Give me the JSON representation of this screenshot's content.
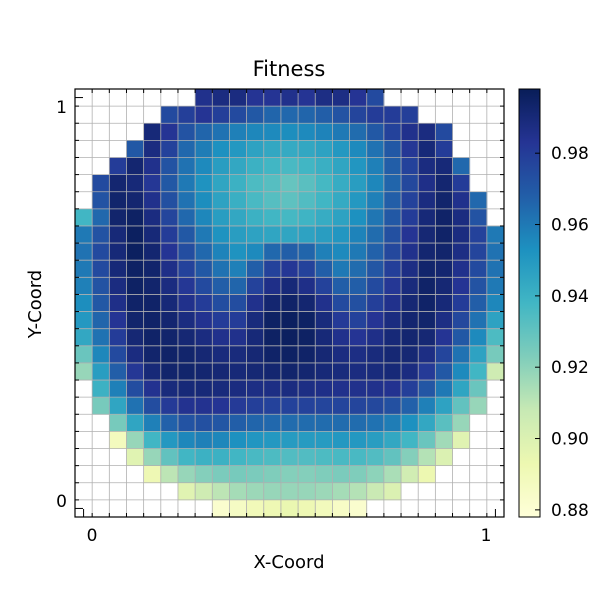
{
  "chart_data": {
    "type": "heatmap",
    "title": "Fitness",
    "xlabel": "X-Coord",
    "ylabel": "Y-Coord",
    "x_ticks": [
      "0",
      "1"
    ],
    "y_ticks": [
      "0",
      "1"
    ],
    "grid": true,
    "colormap": "YlGnBu",
    "colorbar": {
      "ticks": [
        0.88,
        0.9,
        0.92,
        0.94,
        0.96,
        0.98
      ],
      "tick_labels": [
        "0.88",
        "0.90",
        "0.92",
        "0.94",
        "0.96",
        "0.98"
      ],
      "range": [
        0.878,
        0.998
      ],
      "position": "right"
    },
    "grid_size": 25,
    "rows_top_to_bottom": [
      [
        null,
        null,
        null,
        null,
        null,
        null,
        null,
        0.985,
        0.988,
        0.988,
        0.983,
        0.983,
        0.985,
        0.983,
        0.987,
        0.987,
        0.983,
        0.975,
        null,
        null,
        null,
        null,
        null,
        null,
        null
      ],
      [
        null,
        null,
        null,
        null,
        null,
        0.975,
        0.979,
        0.983,
        0.979,
        0.975,
        0.97,
        0.966,
        0.965,
        0.966,
        0.968,
        0.972,
        0.977,
        0.98,
        0.98,
        0.979,
        null,
        null,
        null,
        null,
        null
      ],
      [
        null,
        null,
        null,
        null,
        0.99,
        0.983,
        0.972,
        0.966,
        0.962,
        0.958,
        0.956,
        0.955,
        0.954,
        0.955,
        0.957,
        0.96,
        0.964,
        0.97,
        0.978,
        0.985,
        0.988,
        0.975,
        null,
        null,
        null
      ],
      [
        null,
        null,
        null,
        0.97,
        0.988,
        0.978,
        0.965,
        0.959,
        0.953,
        0.95,
        0.946,
        0.944,
        0.943,
        0.944,
        0.946,
        0.95,
        0.955,
        0.962,
        0.97,
        0.982,
        0.99,
        0.98,
        null,
        null,
        null
      ],
      [
        null,
        null,
        0.98,
        0.992,
        0.985,
        0.972,
        0.962,
        0.955,
        0.948,
        0.944,
        0.94,
        0.938,
        0.936,
        0.938,
        0.941,
        0.945,
        0.951,
        0.958,
        0.968,
        0.978,
        0.988,
        0.99,
        0.965,
        null,
        null
      ],
      [
        null,
        0.975,
        0.992,
        0.99,
        0.982,
        0.97,
        0.96,
        0.952,
        0.945,
        0.94,
        0.935,
        0.933,
        0.929,
        0.932,
        0.937,
        0.942,
        0.948,
        0.956,
        0.966,
        0.976,
        0.986,
        0.992,
        0.98,
        null,
        null
      ],
      [
        null,
        0.972,
        0.993,
        0.992,
        0.985,
        0.973,
        0.962,
        0.954,
        0.946,
        0.941,
        0.936,
        0.933,
        0.931,
        0.934,
        0.938,
        0.943,
        0.95,
        0.958,
        0.968,
        0.978,
        0.988,
        0.993,
        0.985,
        0.965,
        null
      ],
      [
        0.938,
        0.965,
        0.993,
        0.995,
        0.988,
        0.977,
        0.965,
        0.956,
        0.948,
        0.944,
        0.94,
        0.938,
        0.937,
        0.939,
        0.942,
        0.946,
        0.953,
        0.961,
        0.97,
        0.98,
        0.99,
        0.994,
        0.988,
        0.972,
        null
      ],
      [
        0.96,
        0.972,
        0.99,
        0.996,
        0.99,
        0.98,
        0.97,
        0.96,
        0.952,
        0.948,
        0.946,
        0.945,
        0.945,
        0.946,
        0.948,
        0.951,
        0.957,
        0.964,
        0.973,
        0.983,
        0.991,
        0.994,
        0.988,
        0.978,
        0.96
      ],
      [
        0.962,
        0.975,
        0.99,
        0.996,
        0.992,
        0.983,
        0.974,
        0.965,
        0.957,
        0.952,
        0.955,
        0.965,
        0.968,
        0.966,
        0.958,
        0.955,
        0.96,
        0.967,
        0.976,
        0.985,
        0.992,
        0.993,
        0.987,
        0.977,
        0.962
      ],
      [
        0.96,
        0.975,
        0.99,
        0.995,
        0.993,
        0.986,
        0.978,
        0.97,
        0.962,
        0.958,
        0.968,
        0.978,
        0.982,
        0.978,
        0.968,
        0.96,
        0.964,
        0.971,
        0.979,
        0.987,
        0.993,
        0.992,
        0.985,
        0.975,
        0.962
      ],
      [
        0.958,
        0.972,
        0.988,
        0.995,
        0.993,
        0.988,
        0.982,
        0.975,
        0.968,
        0.966,
        0.978,
        0.986,
        0.99,
        0.986,
        0.978,
        0.968,
        0.968,
        0.975,
        0.982,
        0.989,
        0.994,
        0.991,
        0.983,
        0.972,
        0.96
      ],
      [
        0.954,
        0.97,
        0.986,
        0.994,
        0.994,
        0.99,
        0.985,
        0.98,
        0.974,
        0.974,
        0.985,
        0.992,
        0.994,
        0.992,
        0.985,
        0.975,
        0.973,
        0.979,
        0.985,
        0.991,
        0.994,
        0.99,
        0.98,
        0.968,
        0.956
      ],
      [
        0.95,
        0.966,
        0.983,
        0.993,
        0.994,
        0.992,
        0.988,
        0.984,
        0.98,
        0.98,
        0.989,
        0.995,
        0.996,
        0.995,
        0.989,
        0.981,
        0.978,
        0.983,
        0.988,
        0.992,
        0.993,
        0.987,
        0.976,
        0.962,
        0.946
      ],
      [
        0.944,
        0.962,
        0.98,
        0.991,
        0.994,
        0.993,
        0.991,
        0.988,
        0.985,
        0.985,
        0.99,
        0.995,
        0.996,
        0.995,
        0.99,
        0.985,
        0.983,
        0.986,
        0.99,
        0.992,
        0.991,
        0.983,
        0.97,
        0.955,
        0.935
      ],
      [
        0.928,
        0.956,
        0.975,
        0.988,
        0.993,
        0.994,
        0.993,
        0.991,
        0.989,
        0.989,
        0.991,
        0.994,
        0.995,
        0.994,
        0.991,
        0.988,
        0.987,
        0.989,
        0.991,
        0.991,
        0.987,
        0.977,
        0.962,
        0.946,
        0.925
      ],
      [
        0.918,
        0.948,
        0.968,
        0.982,
        0.99,
        0.993,
        0.993,
        0.992,
        0.991,
        0.99,
        0.991,
        0.992,
        0.993,
        0.992,
        0.99,
        0.989,
        0.988,
        0.989,
        0.99,
        0.988,
        0.981,
        0.97,
        0.955,
        0.938,
        0.905
      ],
      [
        null,
        0.94,
        0.958,
        0.974,
        0.984,
        0.989,
        0.99,
        0.99,
        0.989,
        0.988,
        0.987,
        0.987,
        0.988,
        0.987,
        0.986,
        0.985,
        0.985,
        0.985,
        0.984,
        0.979,
        0.971,
        0.96,
        0.945,
        0.928,
        null
      ],
      [
        null,
        0.925,
        0.945,
        0.962,
        0.974,
        0.981,
        0.984,
        0.984,
        0.983,
        0.981,
        0.979,
        0.978,
        0.978,
        0.978,
        0.977,
        0.977,
        0.977,
        0.976,
        0.973,
        0.967,
        0.958,
        0.946,
        0.93,
        0.918,
        null
      ],
      [
        null,
        null,
        0.925,
        0.945,
        0.958,
        0.967,
        0.972,
        0.973,
        0.971,
        0.968,
        0.966,
        0.965,
        0.964,
        0.964,
        0.964,
        0.964,
        0.964,
        0.962,
        0.959,
        0.953,
        0.944,
        0.932,
        0.918,
        null,
        null
      ],
      [
        null,
        null,
        0.888,
        0.918,
        0.938,
        0.95,
        0.956,
        0.958,
        0.956,
        0.953,
        0.951,
        0.95,
        0.949,
        0.949,
        0.949,
        0.95,
        0.95,
        0.948,
        0.944,
        0.938,
        0.928,
        0.916,
        0.898,
        null,
        null
      ],
      [
        null,
        null,
        null,
        0.898,
        0.918,
        0.93,
        0.938,
        0.94,
        0.94,
        0.938,
        0.936,
        0.935,
        0.934,
        0.934,
        0.935,
        0.936,
        0.936,
        0.934,
        0.93,
        0.922,
        0.912,
        0.9,
        null,
        null,
        null
      ],
      [
        null,
        null,
        null,
        null,
        0.892,
        0.91,
        0.918,
        0.922,
        0.924,
        0.925,
        0.924,
        0.923,
        0.922,
        0.922,
        0.923,
        0.924,
        0.923,
        0.92,
        0.914,
        0.904,
        0.893,
        null,
        null,
        null,
        null
      ],
      [
        null,
        null,
        null,
        null,
        null,
        null,
        0.898,
        0.905,
        0.91,
        0.915,
        0.917,
        0.918,
        0.918,
        0.918,
        0.917,
        0.915,
        0.912,
        0.907,
        0.9,
        null,
        null,
        null,
        null,
        null,
        null
      ],
      [
        null,
        null,
        null,
        null,
        null,
        null,
        null,
        null,
        0.882,
        0.886,
        0.89,
        0.892,
        0.894,
        0.892,
        0.889,
        0.885,
        0.882,
        null,
        null,
        null,
        null,
        null,
        null,
        null,
        null
      ]
    ]
  }
}
